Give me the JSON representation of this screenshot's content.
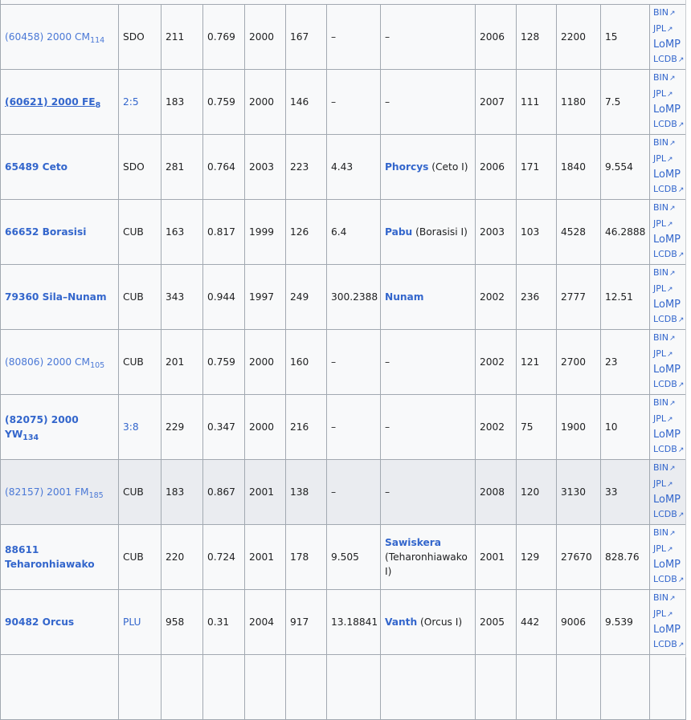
{
  "link_labels": [
    "BIN",
    "JPL",
    "LoMP",
    "LCDB"
  ],
  "colors": {
    "link": "#3366cc",
    "border": "#a2a9b1",
    "table_bg": "#f8f9fa",
    "highlight_row": "#eaecf0"
  },
  "rows": [
    {
      "name": "(60458) 2000 CM",
      "sub": "114",
      "bold": false,
      "class": "SDO",
      "class_link": false,
      "c3": "211",
      "c4": "0.769",
      "c5": "2000",
      "c6": "167",
      "c7": "–",
      "moon": "–",
      "moon_note": "",
      "c9": "2006",
      "c10": "128",
      "c11": "2200",
      "c12": "15"
    },
    {
      "name": "(60621) 2000 FE",
      "sub": "8",
      "bold": true,
      "underline": true,
      "class": "2:5",
      "class_link": true,
      "c3": "183",
      "c4": "0.759",
      "c5": "2000",
      "c6": "146",
      "c7": "–",
      "moon": "–",
      "moon_note": "",
      "c9": "2007",
      "c10": "111",
      "c11": "1180",
      "c12": "7.5"
    },
    {
      "name": "65489 Ceto",
      "sub": "",
      "bold": true,
      "class": "SDO",
      "class_link": false,
      "c3": "281",
      "c4": "0.764",
      "c5": "2003",
      "c6": "223",
      "c7": "4.43",
      "moon": "Phorcys",
      "moon_note": " (Ceto I)",
      "c9": "2006",
      "c10": "171",
      "c11": "1840",
      "c12": "9.554"
    },
    {
      "name": "66652 Borasisi",
      "sub": "",
      "bold": true,
      "class": "CUB",
      "class_link": false,
      "c3": "163",
      "c4": "0.817",
      "c5": "1999",
      "c6": "126",
      "c7": "6.4",
      "moon": "Pabu",
      "moon_note": " (Borasisi I)",
      "c9": "2003",
      "c10": "103",
      "c11": "4528",
      "c12": "46.2888"
    },
    {
      "name": "79360 Sila–Nunam",
      "sub": "",
      "bold": true,
      "class": "CUB",
      "class_link": false,
      "c3": "343",
      "c4": "0.944",
      "c5": "1997",
      "c6": "249",
      "c7": "300.2388",
      "moon": "Nunam",
      "moon_note": "",
      "c9": "2002",
      "c10": "236",
      "c11": "2777",
      "c12": "12.51"
    },
    {
      "name": "(80806) 2000 CM",
      "sub": "105",
      "bold": false,
      "class": "CUB",
      "class_link": false,
      "c3": "201",
      "c4": "0.759",
      "c5": "2000",
      "c6": "160",
      "c7": "–",
      "moon": "–",
      "moon_note": "",
      "c9": "2002",
      "c10": "121",
      "c11": "2700",
      "c12": "23"
    },
    {
      "name": "(82075) 2000 YW",
      "sub": "134",
      "bold": true,
      "class": "3:8",
      "class_link": true,
      "c3": "229",
      "c4": "0.347",
      "c5": "2000",
      "c6": "216",
      "c7": "–",
      "moon": "–",
      "moon_note": "",
      "c9": "2002",
      "c10": "75",
      "c11": "1900",
      "c12": "10"
    },
    {
      "name": "(82157) 2001 FM",
      "sub": "185",
      "bold": false,
      "highlight": true,
      "class": "CUB",
      "class_link": false,
      "c3": "183",
      "c4": "0.867",
      "c5": "2001",
      "c6": "138",
      "c7": "–",
      "moon": "–",
      "moon_note": "",
      "c9": "2008",
      "c10": "120",
      "c11": "3130",
      "c12": "33"
    },
    {
      "name": "88611 Teharonhiawako",
      "sub": "",
      "bold": true,
      "class": "CUB",
      "class_link": false,
      "c3": "220",
      "c4": "0.724",
      "c5": "2001",
      "c6": "178",
      "c7": "9.505",
      "moon": "Sawiskera",
      "moon_note": " (Teharonhiawako I)",
      "moon_break": true,
      "c9": "2001",
      "c10": "129",
      "c11": "27670",
      "c12": "828.76"
    },
    {
      "name": "90482 Orcus",
      "sub": "",
      "bold": true,
      "class": "PLU",
      "class_link": true,
      "c3": "958",
      "c4": "0.31",
      "c5": "2004",
      "c6": "917",
      "c7": "13.18841",
      "moon": "Vanth",
      "moon_note": " (Orcus I)",
      "c9": "2005",
      "c10": "442",
      "c11": "9006",
      "c12": "9.539"
    }
  ]
}
